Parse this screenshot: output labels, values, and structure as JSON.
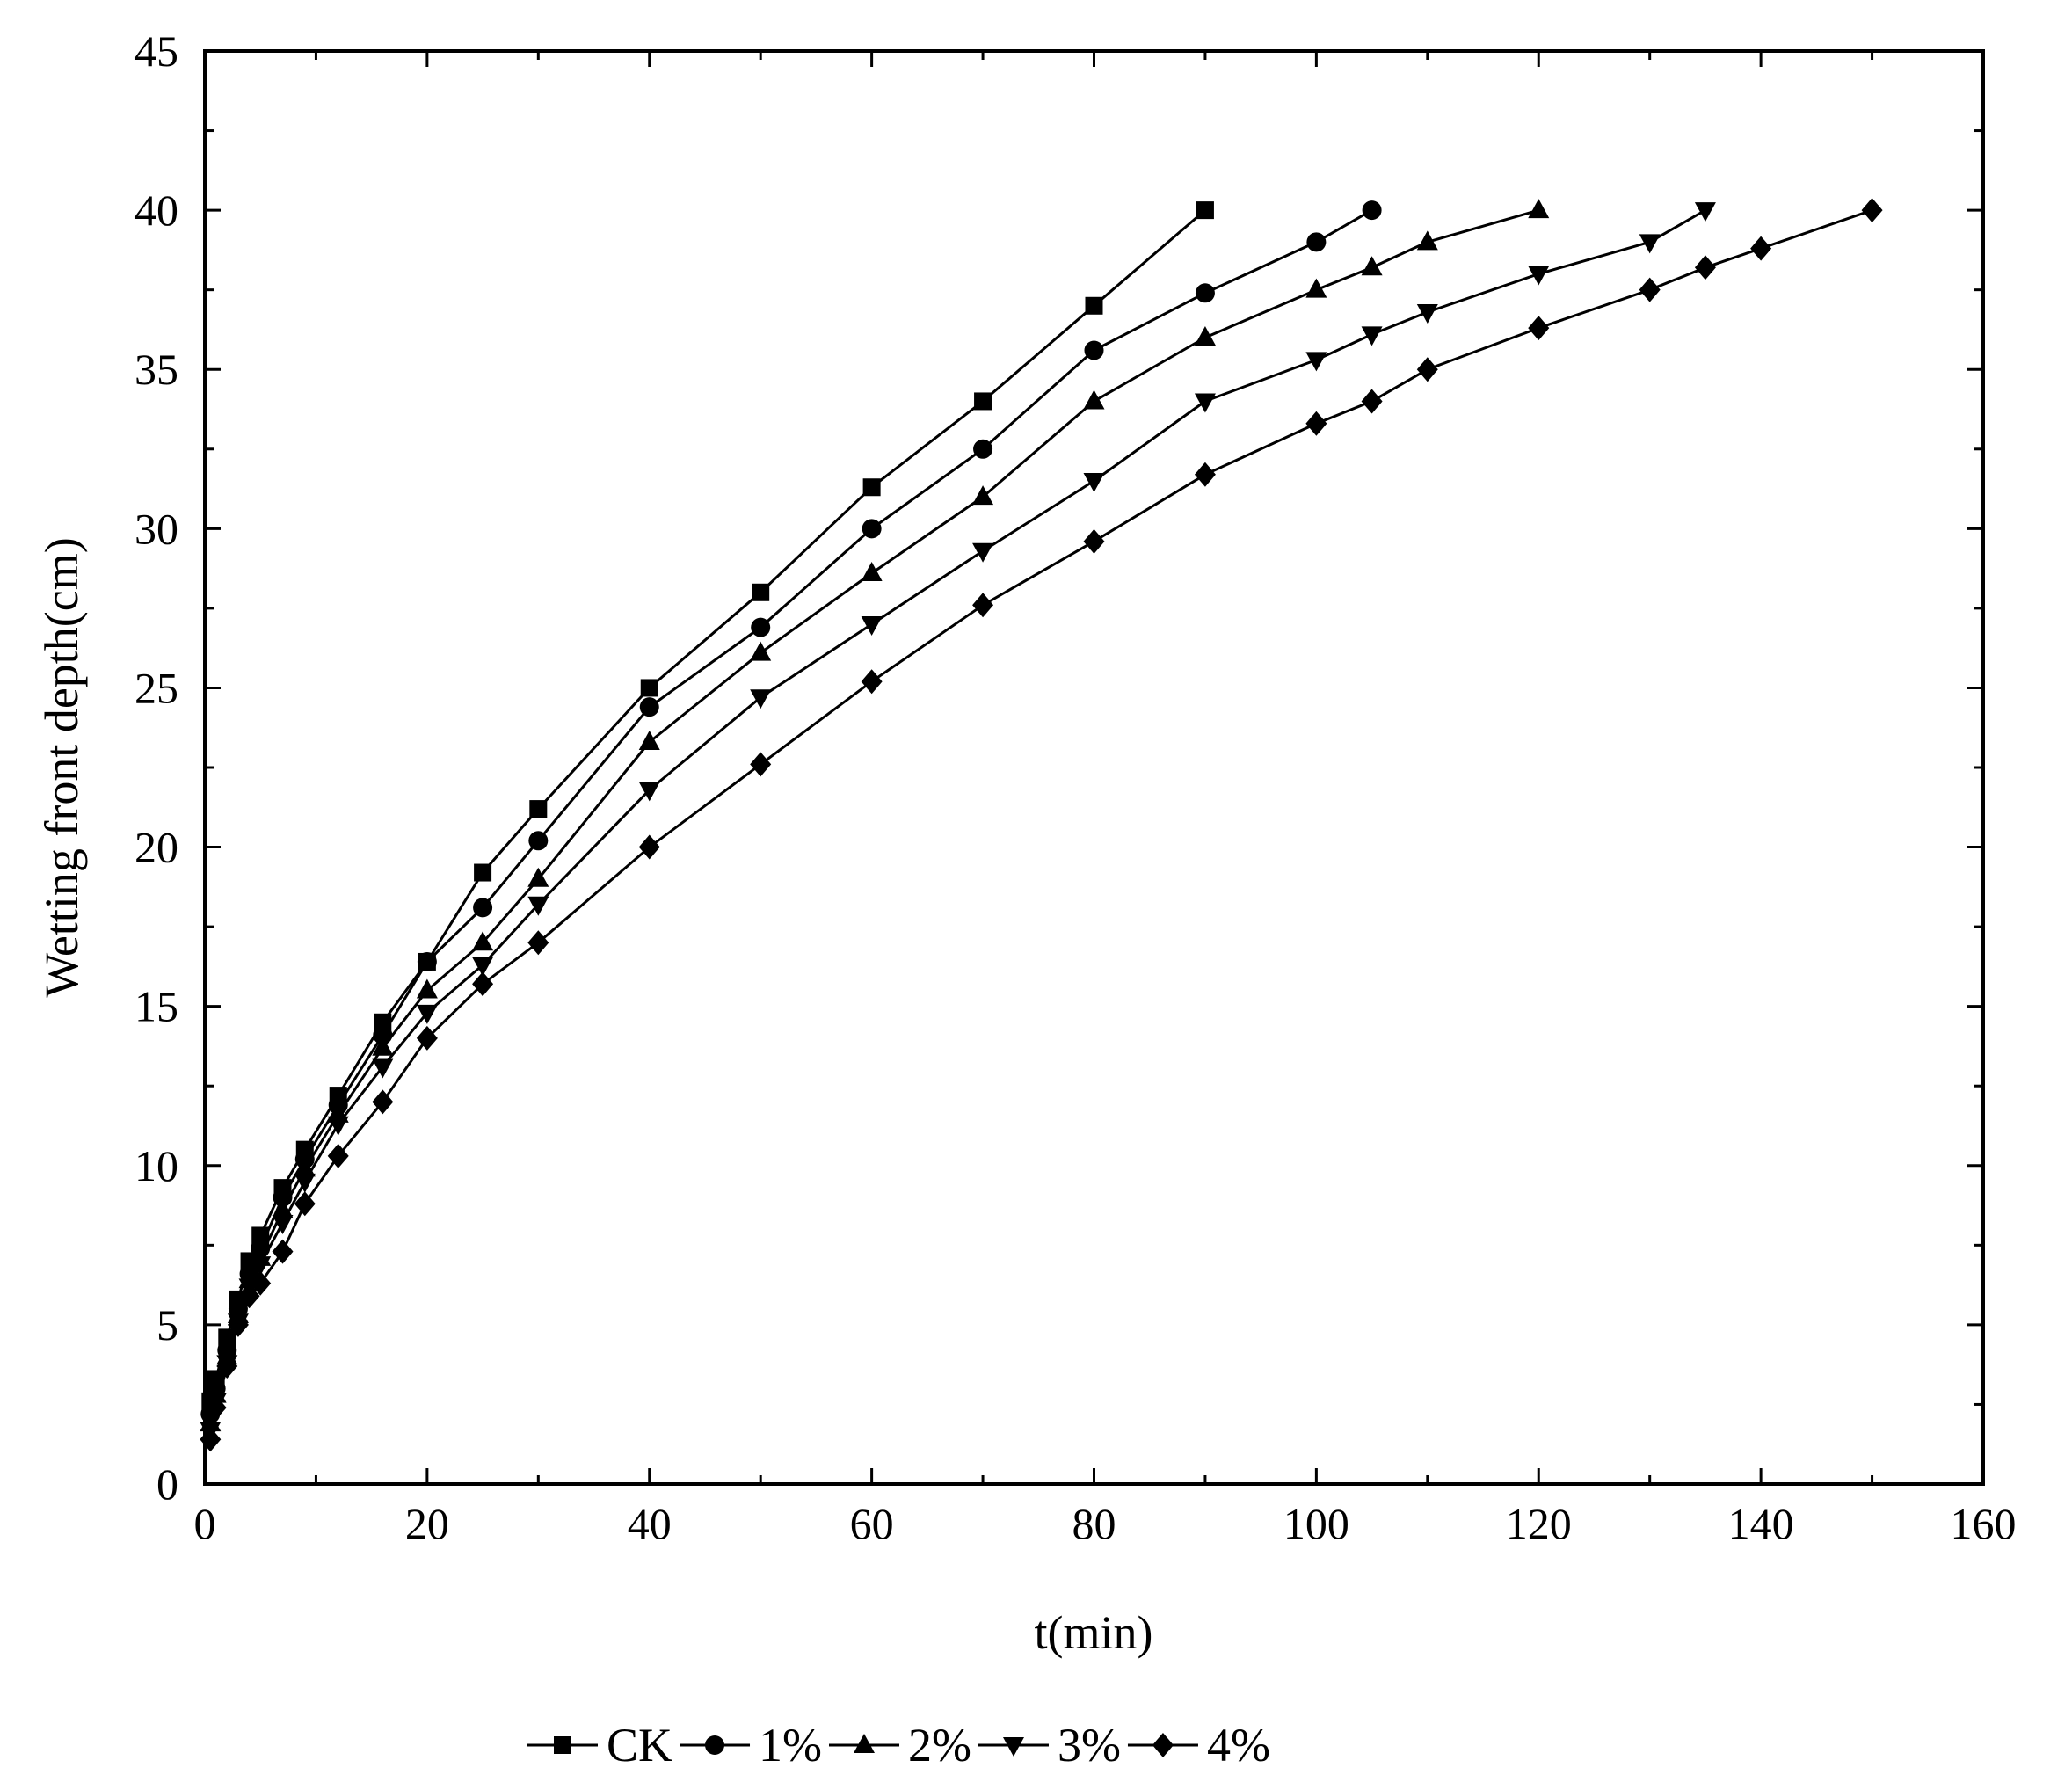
{
  "chart_data": {
    "type": "line",
    "title": "",
    "xlabel": "t(min)",
    "ylabel": "Wetting front depth(cm)",
    "xlim": [
      0,
      160
    ],
    "ylim": [
      0,
      45
    ],
    "xticks": [
      0,
      20,
      40,
      60,
      80,
      100,
      120,
      140,
      160
    ],
    "yticks": [
      0,
      5,
      10,
      15,
      20,
      25,
      30,
      35,
      40,
      45
    ],
    "xtick_labels": [
      "0",
      "20",
      "40",
      "60",
      "80",
      "100",
      "120",
      "140",
      "160"
    ],
    "ytick_labels": [
      "0",
      "5",
      "10",
      "15",
      "20",
      "25",
      "30",
      "35",
      "40",
      "45"
    ],
    "grid": false,
    "legend_position": "bottom",
    "series": [
      {
        "name": "CK",
        "marker": "square",
        "x": [
          0.5,
          1,
          2,
          3,
          4,
          5,
          7,
          9,
          12,
          16,
          20,
          25,
          30,
          40,
          50,
          60,
          70,
          80,
          90
        ],
        "y": [
          2.6,
          3.3,
          4.6,
          5.8,
          7.0,
          7.8,
          9.3,
          10.5,
          12.2,
          14.5,
          16.4,
          19.2,
          21.2,
          25.0,
          28.0,
          31.3,
          34.0,
          37.0,
          40.0
        ]
      },
      {
        "name": "1%",
        "marker": "circle",
        "x": [
          0.5,
          1,
          2,
          3,
          4,
          5,
          7,
          9,
          12,
          16,
          20,
          25,
          30,
          40,
          50,
          60,
          70,
          80,
          90,
          100,
          105
        ],
        "y": [
          2.2,
          3.0,
          4.2,
          5.5,
          6.6,
          7.4,
          9.0,
          10.2,
          11.9,
          14.1,
          16.4,
          18.1,
          20.2,
          24.4,
          26.9,
          30.0,
          32.5,
          35.6,
          37.4,
          39.0,
          40.0
        ]
      },
      {
        "name": "2%",
        "marker": "triangle-up",
        "x": [
          0.5,
          1,
          2,
          3,
          4,
          5,
          7,
          9,
          12,
          16,
          20,
          25,
          30,
          40,
          50,
          60,
          70,
          80,
          90,
          100,
          105,
          110,
          120
        ],
        "y": [
          1.9,
          2.8,
          4.0,
          5.3,
          6.4,
          7.1,
          8.6,
          9.9,
          11.6,
          13.7,
          15.5,
          17.0,
          19.0,
          23.3,
          26.1,
          28.6,
          31.0,
          34.0,
          36.0,
          37.5,
          38.2,
          39.0,
          40.0
        ]
      },
      {
        "name": "3%",
        "marker": "triangle-down",
        "x": [
          0.5,
          1,
          2,
          3,
          4,
          5,
          7,
          9,
          12,
          16,
          20,
          25,
          30,
          40,
          50,
          60,
          70,
          80,
          90,
          100,
          105,
          110,
          120,
          130,
          135
        ],
        "y": [
          1.7,
          2.6,
          3.8,
          5.1,
          6.2,
          6.9,
          8.2,
          9.5,
          11.3,
          13.1,
          14.8,
          16.3,
          18.2,
          21.8,
          24.7,
          27.0,
          29.3,
          31.5,
          34.0,
          35.3,
          36.1,
          36.8,
          38.0,
          39.0,
          40.0
        ]
      },
      {
        "name": "4%",
        "marker": "diamond",
        "x": [
          0.5,
          1,
          2,
          3,
          4,
          5,
          7,
          9,
          12,
          16,
          20,
          25,
          30,
          40,
          50,
          60,
          70,
          80,
          90,
          100,
          105,
          110,
          120,
          130,
          135,
          140,
          150
        ],
        "y": [
          1.4,
          2.4,
          3.7,
          5.0,
          5.9,
          6.3,
          7.3,
          8.8,
          10.3,
          12.0,
          14.0,
          15.7,
          17.0,
          20.0,
          22.6,
          25.2,
          27.6,
          29.6,
          31.7,
          33.3,
          34.0,
          35.0,
          36.3,
          37.5,
          38.2,
          38.8,
          40.0
        ]
      }
    ]
  }
}
